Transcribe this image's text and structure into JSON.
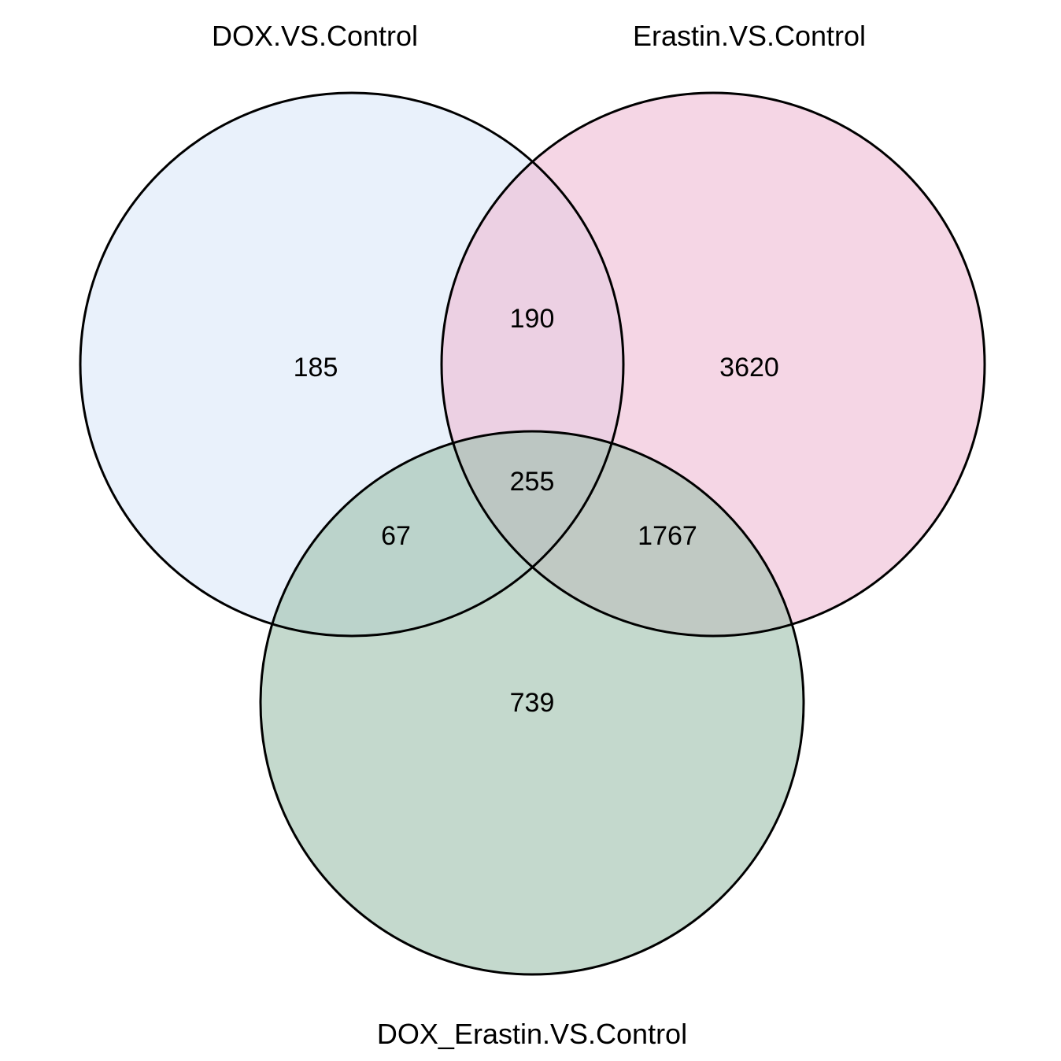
{
  "sets": [
    {
      "id": "dox",
      "label": "DOX.VS.Control",
      "color": "#dbe7f8"
    },
    {
      "id": "erastin",
      "label": "Erastin.VS.Control",
      "color": "#efbbd4"
    },
    {
      "id": "dox_erastin",
      "label": "DOX_Erastin.VS.Control",
      "color": "#9cbfac"
    }
  ],
  "regions": {
    "dox_only": "185",
    "dox_erastin_only": "190",
    "erastin_only": "3620",
    "all_three": "255",
    "dox_and_combo_only": "67",
    "erastin_and_combo_only": "1767",
    "combo_only": "739"
  },
  "border_color": "#000000"
}
